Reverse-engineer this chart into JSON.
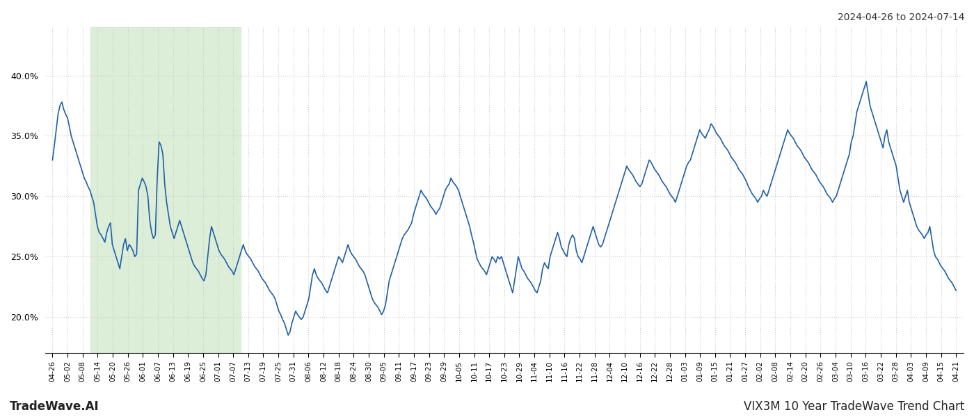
{
  "title_top_right": "2024-04-26 to 2024-07-14",
  "title_bottom_left": "TradeWave.AI",
  "title_bottom_right": "VIX3M 10 Year TradeWave Trend Chart",
  "line_color": "#1f5fa6",
  "line_width": 1.2,
  "highlight_color": "#d6ecd2",
  "highlight_alpha": 0.85,
  "background_color": "#ffffff",
  "grid_color": "#cccccc",
  "ylim": [
    17.0,
    44.0
  ],
  "yticks": [
    20.0,
    25.0,
    30.0,
    35.0,
    40.0
  ],
  "xtick_labels": [
    "04-26",
    "05-02",
    "05-08",
    "05-14",
    "05-20",
    "05-26",
    "06-01",
    "06-07",
    "06-13",
    "06-19",
    "06-25",
    "07-01",
    "07-07",
    "07-13",
    "07-19",
    "07-25",
    "07-31",
    "08-06",
    "08-12",
    "08-18",
    "08-24",
    "08-30",
    "09-05",
    "09-11",
    "09-17",
    "09-23",
    "09-29",
    "10-05",
    "10-11",
    "10-17",
    "10-23",
    "10-29",
    "11-04",
    "11-10",
    "11-16",
    "11-22",
    "11-28",
    "12-04",
    "12-10",
    "12-16",
    "12-22",
    "12-28",
    "01-03",
    "01-09",
    "01-15",
    "01-21",
    "01-27",
    "02-02",
    "02-08",
    "02-14",
    "02-20",
    "02-26",
    "03-04",
    "03-10",
    "03-16",
    "03-22",
    "03-28",
    "04-03",
    "04-09",
    "04-15",
    "04-21"
  ],
  "highlight_start_label": "05-14",
  "highlight_end_label": "07-07",
  "values": [
    33.0,
    34.2,
    35.5,
    36.8,
    37.5,
    37.8,
    37.2,
    36.8,
    36.5,
    35.8,
    35.0,
    34.5,
    34.0,
    33.5,
    33.0,
    32.5,
    32.0,
    31.5,
    31.2,
    30.8,
    30.5,
    30.0,
    29.5,
    28.5,
    27.5,
    27.0,
    26.8,
    26.5,
    26.2,
    27.0,
    27.5,
    27.8,
    26.0,
    25.5,
    25.0,
    24.5,
    24.0,
    25.0,
    26.0,
    26.5,
    25.5,
    26.0,
    25.8,
    25.5,
    25.0,
    25.2,
    30.5,
    31.0,
    31.5,
    31.2,
    30.8,
    30.0,
    28.0,
    27.0,
    26.5,
    26.8,
    31.5,
    34.5,
    34.2,
    33.5,
    31.0,
    29.5,
    28.5,
    27.5,
    27.0,
    26.5,
    27.0,
    27.5,
    28.0,
    27.5,
    27.0,
    26.5,
    26.0,
    25.5,
    25.0,
    24.5,
    24.2,
    24.0,
    23.8,
    23.5,
    23.2,
    23.0,
    23.5,
    25.0,
    26.5,
    27.5,
    27.0,
    26.5,
    26.0,
    25.5,
    25.2,
    25.0,
    24.8,
    24.5,
    24.2,
    24.0,
    23.8,
    23.5,
    24.0,
    24.5,
    25.0,
    25.5,
    26.0,
    25.5,
    25.2,
    25.0,
    24.8,
    24.5,
    24.2,
    24.0,
    23.8,
    23.5,
    23.2,
    23.0,
    22.8,
    22.5,
    22.2,
    22.0,
    21.8,
    21.5,
    21.0,
    20.5,
    20.2,
    19.8,
    19.5,
    19.0,
    18.5,
    18.8,
    19.5,
    20.0,
    20.5,
    20.2,
    20.0,
    19.8,
    20.0,
    20.5,
    21.0,
    21.5,
    22.5,
    23.5,
    24.0,
    23.5,
    23.2,
    23.0,
    22.8,
    22.5,
    22.2,
    22.0,
    22.5,
    23.0,
    23.5,
    24.0,
    24.5,
    25.0,
    24.8,
    24.5,
    25.0,
    25.5,
    26.0,
    25.5,
    25.2,
    25.0,
    24.8,
    24.5,
    24.2,
    24.0,
    23.8,
    23.5,
    23.0,
    22.5,
    22.0,
    21.5,
    21.2,
    21.0,
    20.8,
    20.5,
    20.2,
    20.5,
    21.0,
    22.0,
    23.0,
    23.5,
    24.0,
    24.5,
    25.0,
    25.5,
    26.0,
    26.5,
    26.8,
    27.0,
    27.2,
    27.5,
    27.8,
    28.5,
    29.0,
    29.5,
    30.0,
    30.5,
    30.2,
    30.0,
    29.8,
    29.5,
    29.2,
    29.0,
    28.8,
    28.5,
    28.8,
    29.0,
    29.5,
    30.0,
    30.5,
    30.8,
    31.0,
    31.5,
    31.2,
    31.0,
    30.8,
    30.5,
    30.0,
    29.5,
    29.0,
    28.5,
    28.0,
    27.5,
    26.8,
    26.2,
    25.5,
    24.8,
    24.5,
    24.2,
    24.0,
    23.8,
    23.5,
    24.0,
    24.5,
    25.0,
    24.8,
    24.5,
    25.0,
    24.8,
    25.0,
    24.5,
    24.0,
    23.5,
    23.0,
    22.5,
    22.0,
    23.0,
    24.0,
    25.0,
    24.5,
    24.0,
    23.8,
    23.5,
    23.2,
    23.0,
    22.8,
    22.5,
    22.2,
    22.0,
    22.5,
    23.0,
    24.0,
    24.5,
    24.2,
    24.0,
    25.0,
    25.5,
    26.0,
    26.5,
    27.0,
    26.5,
    25.8,
    25.5,
    25.2,
    25.0,
    26.0,
    26.5,
    26.8,
    26.5,
    25.5,
    25.0,
    24.8,
    24.5,
    25.0,
    25.5,
    26.0,
    26.5,
    27.0,
    27.5,
    27.0,
    26.5,
    26.0,
    25.8,
    26.0,
    26.5,
    27.0,
    27.5,
    28.0,
    28.5,
    29.0,
    29.5,
    30.0,
    30.5,
    31.0,
    31.5,
    32.0,
    32.5,
    32.2,
    32.0,
    31.8,
    31.5,
    31.2,
    31.0,
    30.8,
    31.0,
    31.5,
    32.0,
    32.5,
    33.0,
    32.8,
    32.5,
    32.2,
    32.0,
    31.8,
    31.5,
    31.2,
    31.0,
    30.8,
    30.5,
    30.2,
    30.0,
    29.8,
    29.5,
    30.0,
    30.5,
    31.0,
    31.5,
    32.0,
    32.5,
    32.8,
    33.0,
    33.5,
    34.0,
    34.5,
    35.0,
    35.5,
    35.2,
    35.0,
    34.8,
    35.2,
    35.5,
    36.0,
    35.8,
    35.5,
    35.2,
    35.0,
    34.8,
    34.5,
    34.2,
    34.0,
    33.8,
    33.5,
    33.2,
    33.0,
    32.8,
    32.5,
    32.2,
    32.0,
    31.8,
    31.5,
    31.2,
    30.8,
    30.5,
    30.2,
    30.0,
    29.8,
    29.5,
    29.8,
    30.0,
    30.5,
    30.2,
    30.0,
    30.5,
    31.0,
    31.5,
    32.0,
    32.5,
    33.0,
    33.5,
    34.0,
    34.5,
    35.0,
    35.5,
    35.2,
    35.0,
    34.8,
    34.5,
    34.2,
    34.0,
    33.8,
    33.5,
    33.2,
    33.0,
    32.8,
    32.5,
    32.2,
    32.0,
    31.8,
    31.5,
    31.2,
    31.0,
    30.8,
    30.5,
    30.2,
    30.0,
    29.8,
    29.5,
    29.8,
    30.0,
    30.5,
    31.0,
    31.5,
    32.0,
    32.5,
    33.0,
    33.5,
    34.5,
    35.0,
    36.0,
    37.0,
    37.5,
    38.0,
    38.5,
    39.0,
    39.5,
    38.5,
    37.5,
    37.0,
    36.5,
    36.0,
    35.5,
    35.0,
    34.5,
    34.0,
    35.0,
    35.5,
    34.5,
    34.0,
    33.5,
    33.0,
    32.5,
    31.5,
    30.5,
    30.0,
    29.5,
    30.0,
    30.5,
    29.5,
    29.0,
    28.5,
    28.0,
    27.5,
    27.2,
    27.0,
    26.8,
    26.5,
    26.8,
    27.0,
    27.5,
    26.5,
    25.5,
    25.0,
    24.8,
    24.5,
    24.2,
    24.0,
    23.8,
    23.5,
    23.2,
    23.0,
    22.8,
    22.5,
    22.2
  ]
}
